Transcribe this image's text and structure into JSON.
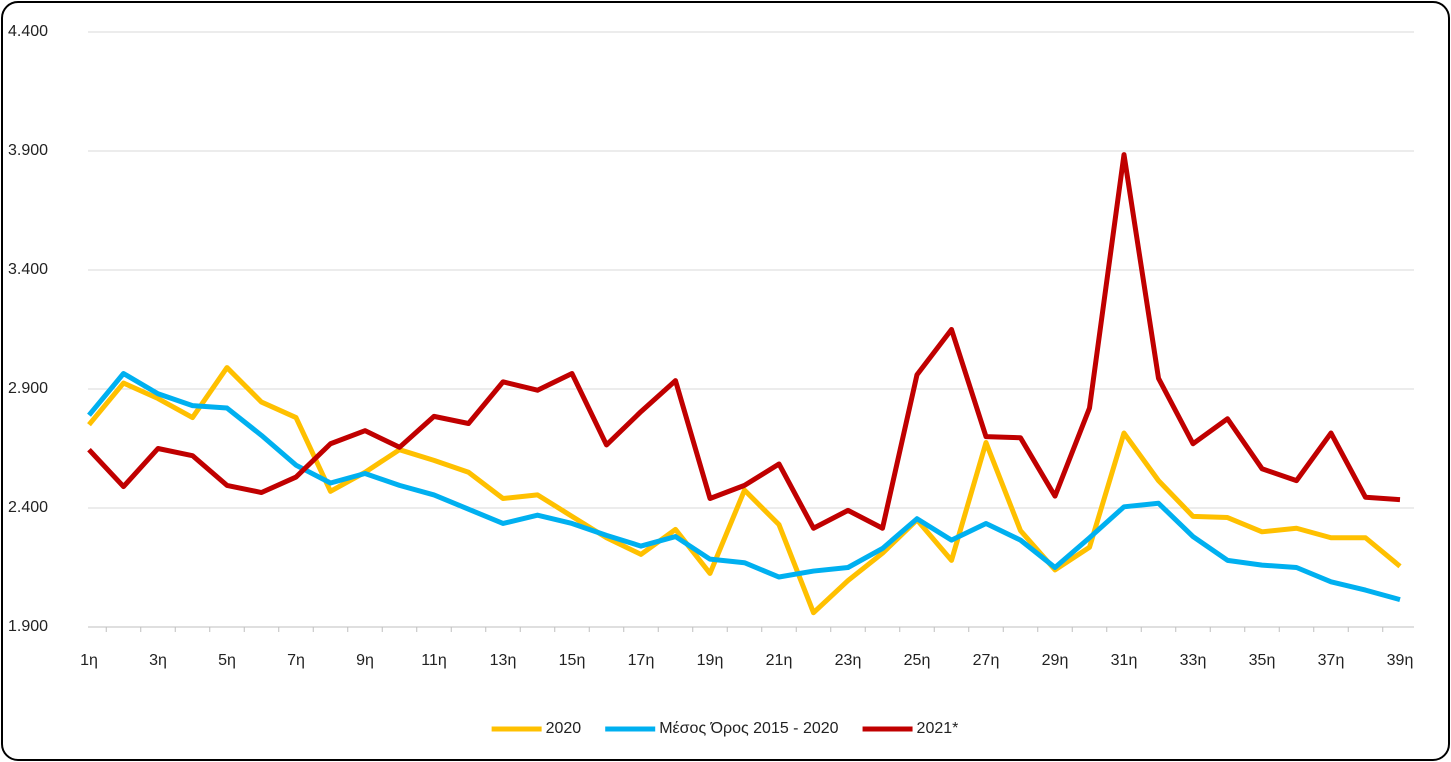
{
  "chart_data": {
    "type": "line",
    "categories": [
      "1η",
      null,
      "3η",
      null,
      "5η",
      null,
      "7η",
      null,
      "9η",
      null,
      "11η",
      null,
      "13η",
      null,
      "15η",
      null,
      "17η",
      null,
      "19η",
      null,
      "21η",
      null,
      "23η",
      null,
      "25η",
      null,
      "27η",
      null,
      "29η",
      null,
      "31η",
      null,
      "33η",
      null,
      "35η",
      null,
      "37η",
      null,
      "39η"
    ],
    "series": [
      {
        "name": "2020",
        "color": "#ffc000",
        "values": [
          2750,
          2925,
          2860,
          2780,
          2990,
          2845,
          2780,
          2470,
          2550,
          2645,
          2600,
          2550,
          2440,
          2455,
          2365,
          2275,
          2205,
          2310,
          2125,
          2475,
          2330,
          1960,
          2095,
          2210,
          2350,
          2180,
          2675,
          2305,
          2140,
          2235,
          2715,
          2515,
          2365,
          2360,
          2300,
          2315,
          2275,
          2275,
          2155
        ]
      },
      {
        "name": "Μέσος Όρος 2015 - 2020",
        "color": "#00b0f0",
        "values": [
          2790,
          2965,
          2880,
          2830,
          2820,
          2705,
          2580,
          2505,
          2545,
          2495,
          2455,
          2395,
          2335,
          2370,
          2335,
          2285,
          2240,
          2280,
          2185,
          2170,
          2110,
          2135,
          2150,
          2230,
          2355,
          2265,
          2335,
          2265,
          2150,
          2275,
          2405,
          2420,
          2280,
          2180,
          2160,
          2150,
          2090,
          2055,
          2015
        ]
      },
      {
        "name": "2021*",
        "color": "#c00000",
        "values": [
          2645,
          2490,
          2650,
          2620,
          2495,
          2465,
          2530,
          2670,
          2725,
          2655,
          2785,
          2755,
          2930,
          2895,
          2965,
          2665,
          2805,
          2935,
          2440,
          2495,
          2585,
          2315,
          2390,
          2315,
          2960,
          3150,
          2700,
          2695,
          2450,
          2820,
          3885,
          2945,
          2670,
          2775,
          2565,
          2515,
          2715,
          2445,
          2435
        ]
      }
    ],
    "ylim": [
      1900,
      4400
    ],
    "yticks": [
      {
        "value": 1900,
        "label": "1.900"
      },
      {
        "value": 2400,
        "label": "2.400"
      },
      {
        "value": 2900,
        "label": "2.900"
      },
      {
        "value": 3400,
        "label": "3.400"
      },
      {
        "value": 3900,
        "label": "3.900"
      },
      {
        "value": 4400,
        "label": "4.400"
      }
    ],
    "grid": true,
    "legend": "bottom"
  }
}
